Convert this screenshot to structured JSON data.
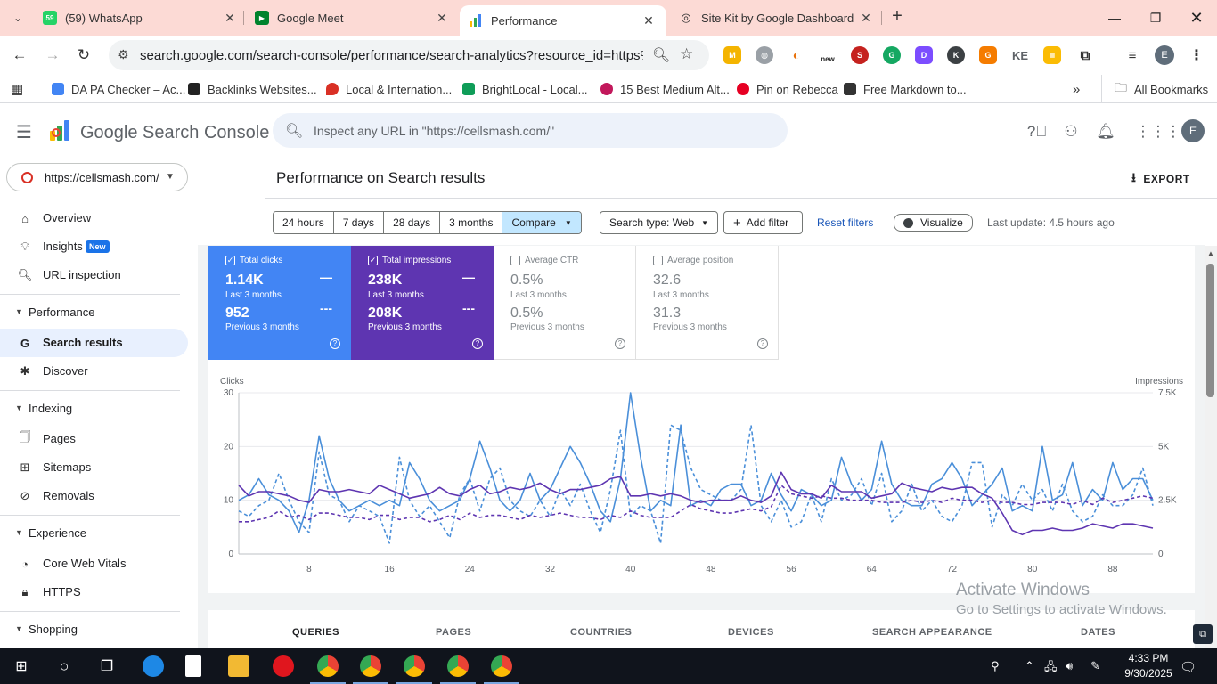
{
  "browser": {
    "tabs": [
      {
        "label": "(59) WhatsApp",
        "badge": "59",
        "active": false
      },
      {
        "label": "Google Meet",
        "active": false
      },
      {
        "label": "Performance",
        "active": true
      },
      {
        "label": "Site Kit by Google Dashboard ‹",
        "active": false
      }
    ],
    "url": "search.google.com/search-console/performance/search-analytics?resource_id=https%3A...",
    "extensions": [
      "M",
      "new",
      "G",
      "D",
      "K",
      "G",
      "KE"
    ],
    "bookmarks": [
      "DA PA Checker – Ac...",
      "Backlinks Websites...",
      "Local & Internation...",
      "BrightLocal - Local...",
      "15 Best Medium Alt...",
      "Pin on Rebecca",
      "Free Markdown to..."
    ],
    "all_bookmarks": "All Bookmarks",
    "avatar_letter": "E"
  },
  "app": {
    "name": "Google Search Console",
    "search_placeholder": "Inspect any URL in \"https://cellsmash.com/\"",
    "avatar_letter": "E"
  },
  "sidebar": {
    "property": "https://cellsmash.com/",
    "top_items": [
      {
        "label": "Overview",
        "icon": "home-icon"
      },
      {
        "label": "Insights",
        "icon": "insights-icon",
        "badge": "New"
      },
      {
        "label": "URL inspection",
        "icon": "search-icon"
      }
    ],
    "sections": [
      {
        "label": "Performance",
        "items": [
          "Search results",
          "Discover"
        ]
      },
      {
        "label": "Indexing",
        "items": [
          "Pages",
          "Sitemaps",
          "Removals"
        ]
      },
      {
        "label": "Experience",
        "items": [
          "Core Web Vitals",
          "HTTPS"
        ]
      },
      {
        "label": "Shopping",
        "items": []
      }
    ],
    "active_item": "Search results"
  },
  "main": {
    "title": "Performance on Search results",
    "export_label": "EXPORT",
    "ranges": [
      "24 hours",
      "7 days",
      "28 days",
      "3 months",
      "Compare"
    ],
    "search_type": "Search type: Web",
    "add_filter": "Add filter",
    "reset_filters": "Reset filters",
    "visualize": "Visualize",
    "last_update": "Last update: 4.5 hours ago",
    "metrics": [
      {
        "label": "Total clicks",
        "value": "1.14K",
        "period": "Last 3 months",
        "prev_value": "952",
        "prev_period": "Previous 3 months",
        "checked": true,
        "color": "#4285f4"
      },
      {
        "label": "Total impressions",
        "value": "238K",
        "period": "Last 3 months",
        "prev_value": "208K",
        "prev_period": "Previous 3 months",
        "checked": true,
        "color": "#5e35b1"
      },
      {
        "label": "Average CTR",
        "value": "0.5%",
        "period": "Last 3 months",
        "prev_value": "0.5%",
        "prev_period": "Previous 3 months",
        "checked": false
      },
      {
        "label": "Average position",
        "value": "32.6",
        "period": "Last 3 months",
        "prev_value": "31.3",
        "prev_period": "Previous 3 months",
        "checked": false
      }
    ],
    "bottom_tabs": [
      "QUERIES",
      "PAGES",
      "COUNTRIES",
      "DEVICES",
      "SEARCH APPEARANCE",
      "DATES"
    ]
  },
  "chart_data": {
    "type": "line",
    "ylabel_left": "Clicks",
    "ylabel_right": "Impressions",
    "y_left_ticks": [
      "30",
      "20",
      "10",
      "0"
    ],
    "y_right_ticks": [
      "7.5K",
      "5K",
      "2.5K",
      "0"
    ],
    "ylim_left": [
      0,
      30
    ],
    "ylim_right": [
      0,
      7500
    ],
    "x_ticks": [
      "8",
      "16",
      "24",
      "32",
      "40",
      "48",
      "56",
      "64",
      "72",
      "80",
      "88"
    ],
    "xlim": [
      1,
      92
    ],
    "grid": true,
    "series": [
      {
        "metric": "clicks",
        "period": "current",
        "color": "#4a8fd9",
        "dashed": false,
        "axis": "left",
        "values": [
          10,
          11,
          14,
          11,
          10,
          8,
          4,
          10,
          22,
          14,
          10,
          8,
          9,
          10,
          9,
          10,
          9,
          17,
          14,
          10,
          8,
          9,
          10,
          14,
          21,
          16,
          10,
          8,
          10,
          15,
          10,
          12,
          16,
          20,
          17,
          13,
          8,
          6,
          14,
          30,
          18,
          8,
          10,
          9,
          24,
          9,
          10,
          9,
          12,
          13,
          13,
          9,
          10,
          15,
          11,
          8,
          12,
          11,
          9,
          10,
          18,
          13,
          10,
          12,
          21,
          13,
          10,
          9,
          9,
          13,
          14,
          17,
          14,
          9,
          11,
          13,
          16,
          8,
          9,
          8,
          20,
          10,
          11,
          17,
          9,
          12,
          10,
          17,
          12,
          14,
          14,
          10
        ]
      },
      {
        "metric": "clicks",
        "period": "previous",
        "color": "#4a8fd9",
        "dashed": true,
        "axis": "left",
        "values": [
          8,
          7,
          9,
          10,
          15,
          10,
          6,
          4,
          19,
          11,
          10,
          6,
          9,
          8,
          7,
          2,
          18,
          10,
          7,
          9,
          6,
          3,
          11,
          14,
          8,
          14,
          16,
          10,
          8,
          7,
          10,
          7,
          12,
          9,
          13,
          8,
          4,
          12,
          23,
          7,
          9,
          8,
          2,
          24,
          23,
          16,
          12,
          11,
          10,
          10,
          12,
          24,
          9,
          6,
          10,
          5,
          6,
          11,
          6,
          14,
          10,
          11,
          14,
          9,
          15,
          6,
          8,
          13,
          8,
          10,
          7,
          6,
          9,
          17,
          17,
          5,
          11,
          9,
          13,
          10,
          12,
          8,
          13,
          8,
          6,
          7,
          11,
          9,
          9,
          11,
          16,
          9
        ]
      },
      {
        "metric": "impressions",
        "period": "current",
        "color": "#5e35b1",
        "dashed": false,
        "axis": "right",
        "values": [
          3200,
          2700,
          2900,
          2900,
          2800,
          2700,
          2500,
          2400,
          3000,
          2900,
          2900,
          3000,
          2900,
          2800,
          3200,
          3000,
          2800,
          2600,
          2700,
          2800,
          3100,
          2800,
          2700,
          3000,
          3200,
          2800,
          2900,
          3100,
          3000,
          3100,
          3300,
          3000,
          2800,
          3000,
          3000,
          3100,
          3200,
          3500,
          3600,
          2700,
          2700,
          2800,
          2700,
          2800,
          2700,
          2500,
          2400,
          2500,
          2500,
          2500,
          2700,
          2500,
          2400,
          2700,
          3800,
          3000,
          2800,
          2800,
          2600,
          3200,
          2900,
          2900,
          2900,
          2600,
          2700,
          2800,
          3300,
          3100,
          3000,
          2900,
          3100,
          3000,
          3100,
          3100,
          2800,
          2600,
          1900,
          1100,
          900,
          1100,
          1100,
          1200,
          1100,
          1100,
          1200,
          1400,
          1300,
          1200,
          1400,
          1400,
          1300,
          1200
        ]
      },
      {
        "metric": "impressions",
        "period": "previous",
        "color": "#5e35b1",
        "dashed": true,
        "axis": "right",
        "values": [
          1500,
          1500,
          1600,
          1700,
          2000,
          1700,
          1800,
          1600,
          1900,
          1900,
          1800,
          1700,
          1700,
          1600,
          1800,
          1800,
          1600,
          1700,
          1700,
          1500,
          1600,
          1800,
          1600,
          1900,
          1700,
          1800,
          1800,
          1700,
          1600,
          1800,
          1700,
          1800,
          1900,
          1800,
          1700,
          1700,
          1600,
          1800,
          1700,
          2000,
          1800,
          1700,
          1700,
          1700,
          2000,
          2300,
          2100,
          2000,
          1900,
          1900,
          2000,
          2100,
          2000,
          2200,
          3200,
          2800,
          2700,
          2600,
          2700,
          2600,
          2600,
          2500,
          2500,
          2500,
          2400,
          2400,
          2400,
          2500,
          2400,
          2500,
          2400,
          2600,
          2500,
          2500,
          2400,
          2500,
          2400,
          2400,
          2300,
          2300,
          2400,
          2400,
          2400,
          2300,
          2500,
          2300,
          2600,
          2400,
          2500,
          2600,
          2700,
          2600
        ]
      }
    ]
  },
  "overlay": {
    "watermark_line1": "Activate Windows",
    "watermark_line2": "Go to Settings to activate Windows."
  },
  "taskbar": {
    "time": "4:33 PM",
    "date": "9/30/2025"
  }
}
